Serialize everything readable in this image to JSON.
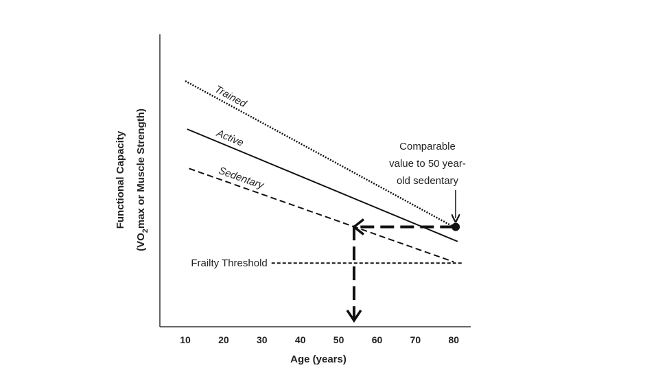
{
  "chart_data": {
    "type": "line",
    "title": "",
    "xlabel": "Age (years)",
    "ylabel_line1": "Functional Capacity",
    "ylabel_line2_pre": "(VO",
    "ylabel_line2_sub": "2",
    "ylabel_line2_post": "max or Muscle Strength)",
    "xlim": [
      3,
      84
    ],
    "ylim": [
      0,
      100
    ],
    "xticks": [
      10,
      20,
      30,
      40,
      50,
      60,
      70,
      80
    ],
    "grid": false,
    "series": [
      {
        "name": "Trained",
        "style": "dotted",
        "x": [
          10,
          80
        ],
        "y": [
          84,
          34
        ]
      },
      {
        "name": "Active",
        "style": "solid",
        "x": [
          10.5,
          81
        ],
        "y": [
          67.5,
          29
        ]
      },
      {
        "name": "Sedentary",
        "style": "dashed",
        "x": [
          11,
          80
        ],
        "y": [
          54,
          22
        ]
      }
    ],
    "threshold": {
      "label": "Frailty Threshold",
      "y": 21.6,
      "x": [
        32.5,
        82.5
      ]
    },
    "point": {
      "x": 80.5,
      "y": 34
    },
    "drop_arrow": {
      "from_x": 80,
      "to_x": 54,
      "y": 34
    },
    "annotation": [
      "Comparable",
      "value to 50 year-",
      "old sedentary"
    ]
  }
}
